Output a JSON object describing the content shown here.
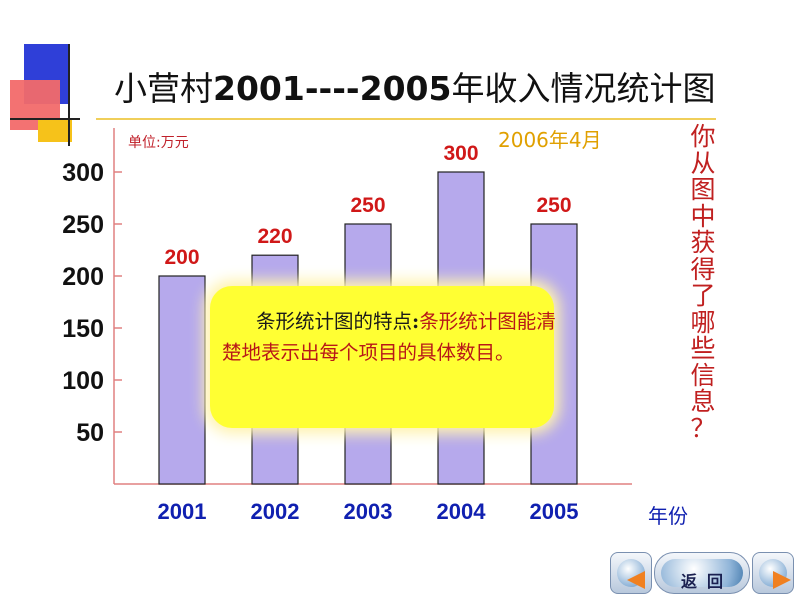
{
  "title_prefix": "小营村",
  "title_years": "2001----2005",
  "title_suffix": "年收入情况统计图",
  "unit_label": "单位:万元",
  "date_label": "2006年4月",
  "question_chars": [
    "你",
    "从",
    "图",
    "中",
    "获",
    "得",
    "了",
    "哪",
    "些",
    "信",
    "息",
    "？"
  ],
  "callout": {
    "lead": "条形统计图的特点",
    "colon": ":",
    "body": "条形统计图能清楚地表示出每个项目的具体数目。"
  },
  "nav": {
    "back_label": "返回"
  },
  "colors": {
    "bar_fill": "#b6a9ec",
    "data_label": "#d01818",
    "x_tick": "#1020b0",
    "y_tick": "#111111",
    "axis": "#e08080"
  },
  "chart_data": {
    "type": "bar",
    "categories": [
      "2001",
      "2002",
      "2003",
      "2004",
      "2005"
    ],
    "values": [
      200,
      220,
      250,
      300,
      250
    ],
    "xlabel": "年份",
    "ylabel": "单位:万元",
    "yticks": [
      50,
      100,
      150,
      200,
      250,
      300
    ],
    "ylim": [
      0,
      300
    ],
    "grid": false,
    "legend": "none"
  }
}
